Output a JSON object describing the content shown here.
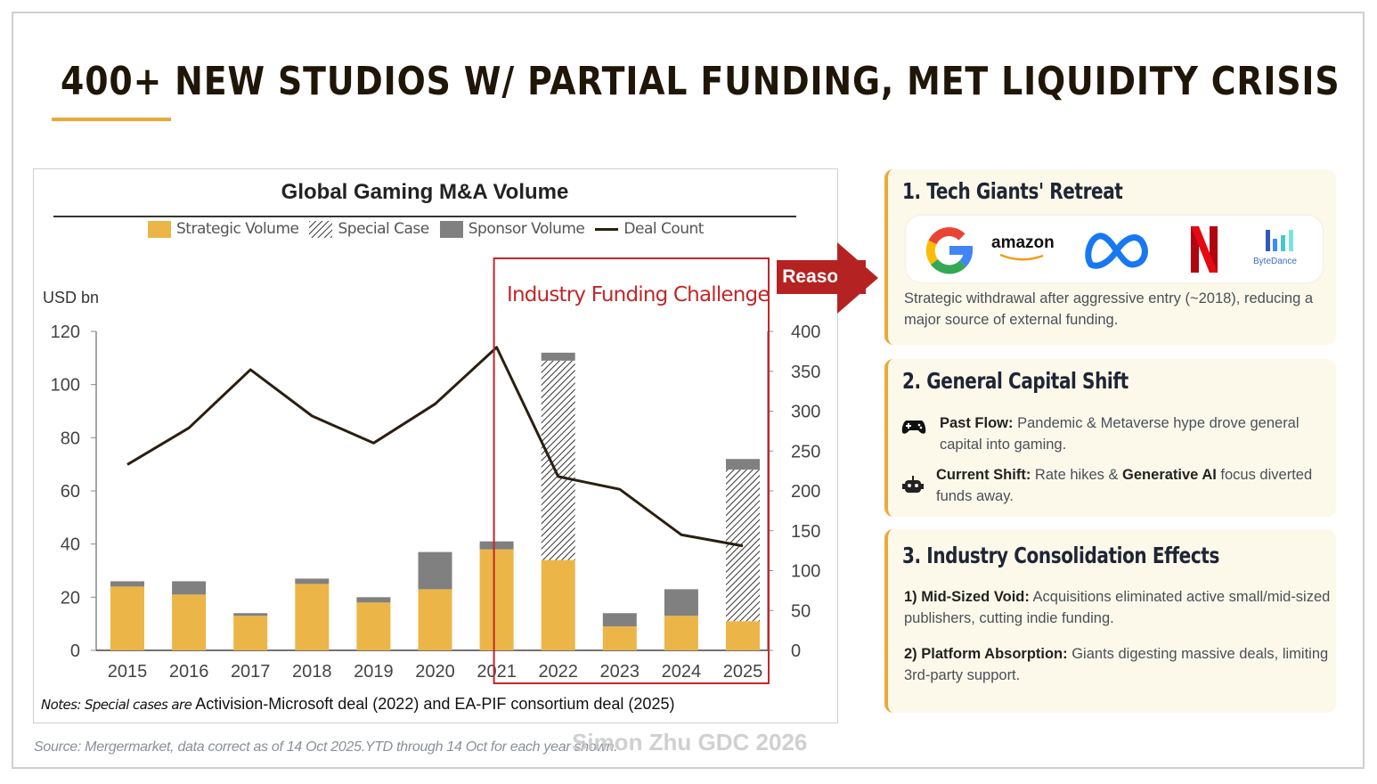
{
  "slide": {
    "title": "400+ NEW STUDIOS W/ PARTIAL FUNDING, MET LIQUIDITY CRISIS",
    "accent_color": "#e9a93b",
    "watermark": "Simon Zhu GDC 2026",
    "source": "Source: Mergermarket, data correct as of 14 Oct 2025.YTD through 14 Oct for each year shown."
  },
  "chart_data": {
    "type": "bar",
    "title": "Global Gaming M&A Volume",
    "ylabel": "USD bn",
    "ylim": [
      0,
      120
    ],
    "y_ticks": [
      "0",
      "20",
      "40",
      "60",
      "80",
      "100",
      "120"
    ],
    "y2lim": [
      0,
      400
    ],
    "y2_ticks": [
      "0",
      "50",
      "100",
      "150",
      "200",
      "250",
      "300",
      "350",
      "400"
    ],
    "stacked": true,
    "grid": false,
    "legend_placement": "top",
    "categories": [
      "2015",
      "2016",
      "2017",
      "2018",
      "2019",
      "2020",
      "2021",
      "2022",
      "2023",
      "2024",
      "2025"
    ],
    "series": [
      {
        "name": "Strategic Volume",
        "kind": "bar",
        "color": "#ecb548",
        "values": [
          24,
          21,
          13,
          25,
          18,
          23,
          38,
          34,
          9,
          13,
          11
        ]
      },
      {
        "name": "Special Case",
        "kind": "bar",
        "pattern": "diagonal-hatch",
        "values": [
          0,
          0,
          0,
          0,
          0,
          0,
          0,
          75,
          0,
          0,
          57
        ]
      },
      {
        "name": "Sponsor Volume",
        "kind": "bar",
        "color": "#808080",
        "values": [
          2,
          5,
          1,
          2,
          2,
          14,
          3,
          3,
          5,
          10,
          4
        ]
      },
      {
        "name": "Deal Count",
        "kind": "line",
        "axis": "right",
        "color": "#2a1f10",
        "values": [
          233,
          279,
          352,
          294,
          260,
          309,
          380,
          218,
          202,
          145,
          131
        ]
      }
    ],
    "annotations": {
      "highlight_label": "Industry Funding Challenge",
      "highlight_range": [
        "2021",
        "2025"
      ],
      "highlight_color": "#c0282a"
    },
    "notes_italic": "Notes: Special cases are",
    "notes_text": " Activision-Microsoft deal (2022) and EA-PIF consortium deal (2025)"
  },
  "reasons_label": "Reasons",
  "cards": [
    {
      "title": "1. Tech Giants' Retreat",
      "logos": [
        "google",
        "amazon",
        "meta",
        "netflix",
        "ByteDance"
      ],
      "amazon_text": "amazon",
      "bytedance_text": "ByteDance",
      "body": "Strategic withdrawal after aggressive entry (~2018), reducing a major source of external funding."
    },
    {
      "title": "2. General Capital Shift",
      "items": [
        {
          "icon": "gamepad-icon",
          "bold": "Past Flow:",
          "text": " Pandemic & Metaverse hype drove general capital into gaming."
        },
        {
          "icon": "robot-icon",
          "bold": "Current Shift:",
          "text": " Rate hikes & ",
          "bold2": "Generative AI",
          "text2": " focus diverted funds away."
        }
      ]
    },
    {
      "title": "3. Industry Consolidation Effects",
      "items": [
        {
          "bold": "1) Mid-Sized Void:",
          "text": " Acquisitions eliminated active small/mid-sized publishers, cutting indie funding."
        },
        {
          "bold": "2) Platform Absorption:",
          "text": " Giants digesting massive deals, limiting 3rd-party support."
        }
      ]
    }
  ]
}
